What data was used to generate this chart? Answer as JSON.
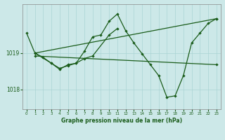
{
  "title": "Graphe pression niveau de la mer (hPa)",
  "bg_color": "#cce8e8",
  "grid_color": "#aad4d4",
  "line_color": "#1a5c1a",
  "ylim": [
    1017.45,
    1020.35
  ],
  "yticks": [
    1018,
    1019
  ],
  "xlim": [
    -0.5,
    23.5
  ],
  "xticks": [
    0,
    1,
    2,
    3,
    4,
    5,
    6,
    7,
    8,
    9,
    10,
    11,
    12,
    13,
    14,
    15,
    16,
    17,
    18,
    19,
    20,
    21,
    22,
    23
  ],
  "line1_x": [
    0,
    1,
    2,
    3,
    4,
    5,
    6,
    7,
    8,
    9,
    10,
    11,
    12,
    13,
    14,
    15,
    16,
    17,
    18,
    19,
    20,
    21,
    22,
    23
  ],
  "line1_y": [
    1019.55,
    1019.0,
    1018.88,
    1018.72,
    1018.58,
    1018.65,
    1018.72,
    1019.05,
    1019.45,
    1019.5,
    1019.88,
    1020.08,
    1019.62,
    1019.28,
    1018.98,
    1018.68,
    1018.38,
    1017.78,
    1017.82,
    1018.38,
    1019.28,
    1019.55,
    1019.82,
    1019.95
  ],
  "line2_x": [
    1,
    23
  ],
  "line2_y": [
    1019.0,
    1019.95
  ],
  "line3_x": [
    1,
    23
  ],
  "line3_y": [
    1018.92,
    1018.68
  ],
  "line4_x": [
    1,
    3,
    4,
    5,
    6,
    7,
    8,
    10,
    11
  ],
  "line4_y": [
    1019.0,
    1018.72,
    1018.55,
    1018.68,
    1018.72,
    1018.85,
    1018.92,
    1019.5,
    1019.68
  ]
}
